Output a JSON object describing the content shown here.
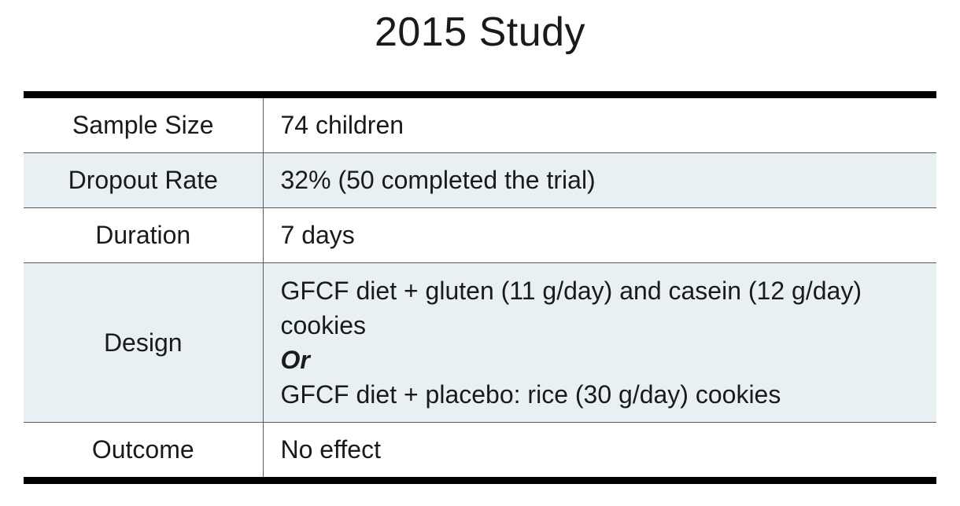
{
  "title": "2015 Study",
  "rows": [
    {
      "label": "Sample Size",
      "value": "74 children"
    },
    {
      "label": "Dropout Rate",
      "value": "32% (50 completed the trial)"
    },
    {
      "label": "Duration",
      "value": "7 days"
    },
    {
      "label": "Design",
      "lines": [
        "GFCF diet + gluten (11 g/day) and casein (12 g/day)",
        "cookies",
        "Or",
        "GFCF diet + placebo: rice (30 g/day) cookies"
      ]
    },
    {
      "label": "Outcome",
      "value": "No effect"
    }
  ],
  "colors": {
    "shaded_row": "#e8f0f3",
    "rule": "#000000"
  }
}
